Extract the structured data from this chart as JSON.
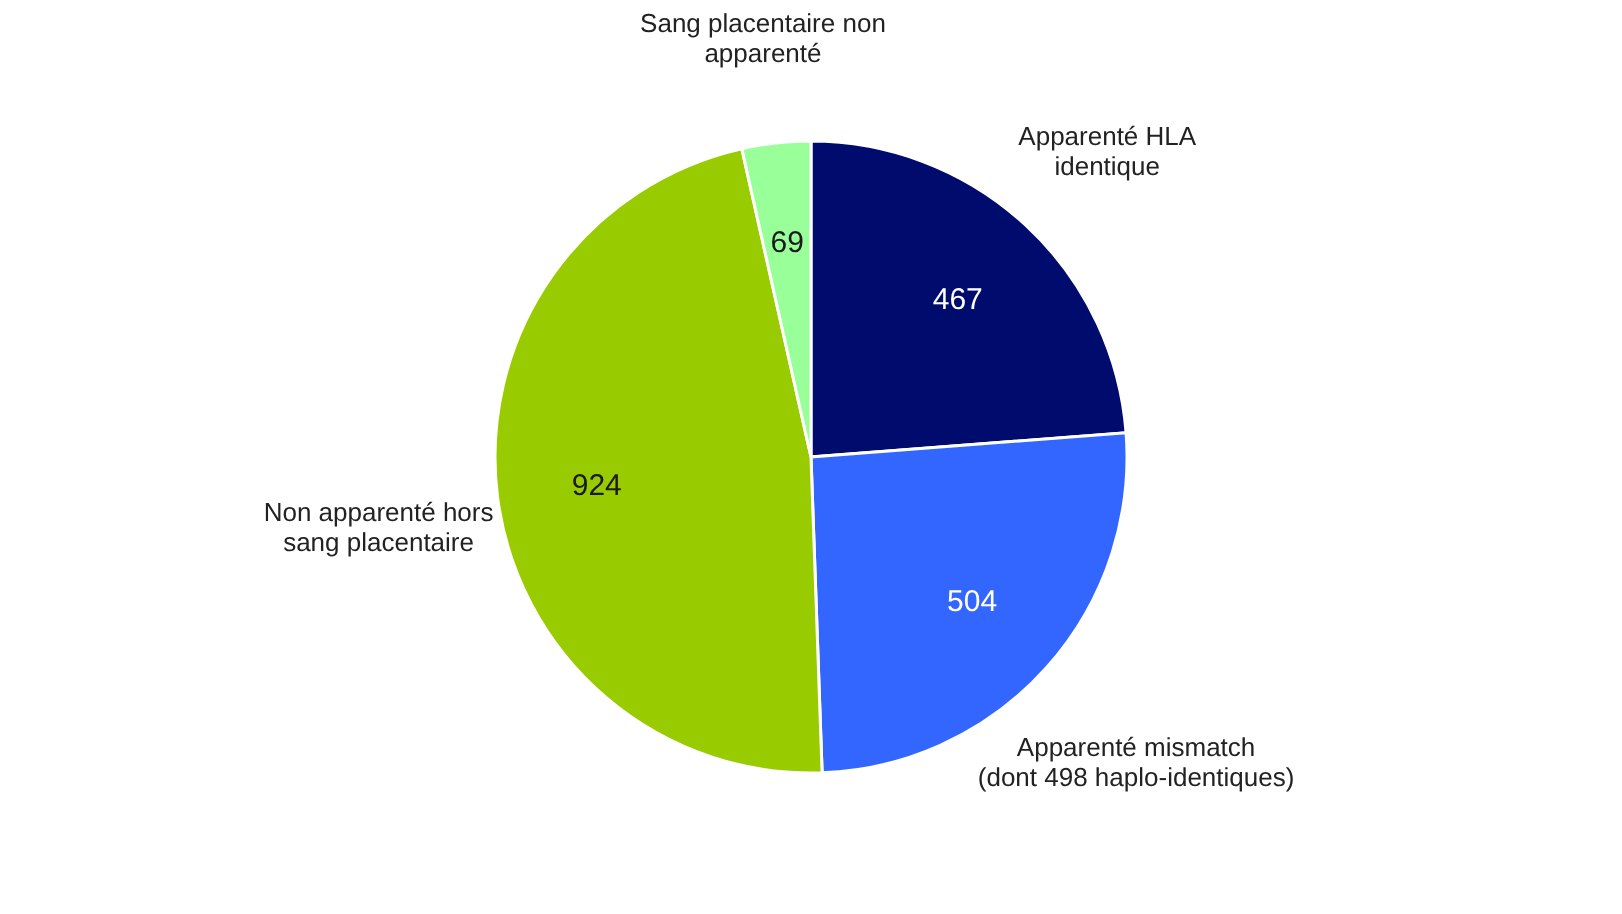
{
  "chart_data": {
    "type": "pie",
    "categories": [
      "Apparenté HLA\nidentique",
      "Apparenté mismatch\n(dont 498 haplo-identiques)",
      "Non apparenté hors\nsang placentaire",
      "Sang placentaire non\napparenté"
    ],
    "values": [
      467,
      504,
      924,
      69
    ],
    "colors": [
      "#000b6e",
      "#3366ff",
      "#99cc00",
      "#99ff99"
    ],
    "data_labels": true,
    "legend": false
  }
}
